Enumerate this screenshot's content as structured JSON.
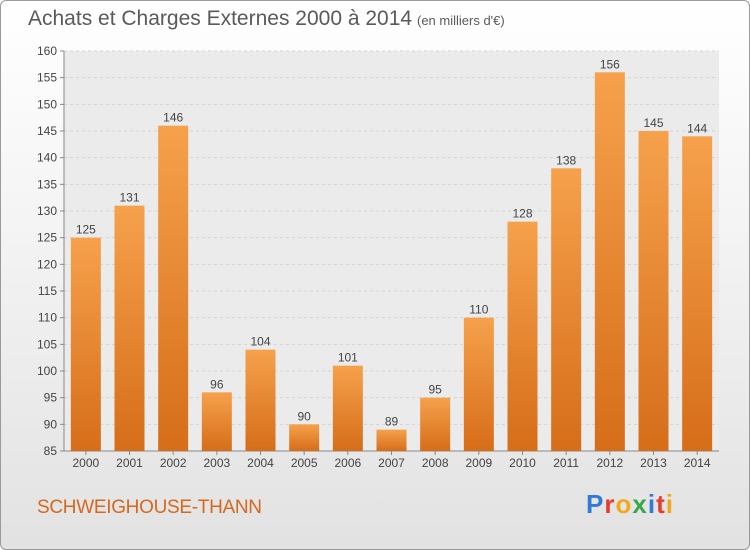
{
  "header": {
    "title": "Achats et Charges Externes 2000 à 2014",
    "subtitle": "(en milliers d'€)"
  },
  "footer": {
    "place": "SCHWEIGHOUSE-THANN",
    "logo_letters": [
      "P",
      "r",
      "o",
      "x",
      "i",
      "t",
      "i"
    ],
    "logo_colors": [
      "#2f7bd6",
      "#e63b2e",
      "#f2a81d",
      "#3aa84a",
      "#2f7bd6",
      "#e63b2e",
      "#f2a81d"
    ]
  },
  "chart_data": {
    "type": "bar",
    "title": "Achats et Charges Externes 2000 à 2014",
    "subtitle": "(en milliers d'€)",
    "categories": [
      "2000",
      "2001",
      "2002",
      "2003",
      "2004",
      "2005",
      "2006",
      "2007",
      "2008",
      "2009",
      "2010",
      "2011",
      "2012",
      "2013",
      "2014"
    ],
    "values": [
      125,
      131,
      146,
      96,
      104,
      90,
      101,
      89,
      95,
      110,
      128,
      138,
      156,
      145,
      144
    ],
    "ylim": [
      85,
      160
    ],
    "yticks": [
      85,
      90,
      95,
      100,
      105,
      110,
      115,
      120,
      125,
      130,
      135,
      140,
      145,
      150,
      155,
      160
    ],
    "grid": true,
    "bar_color": "#f0913a",
    "xlabel": "",
    "ylabel": ""
  }
}
